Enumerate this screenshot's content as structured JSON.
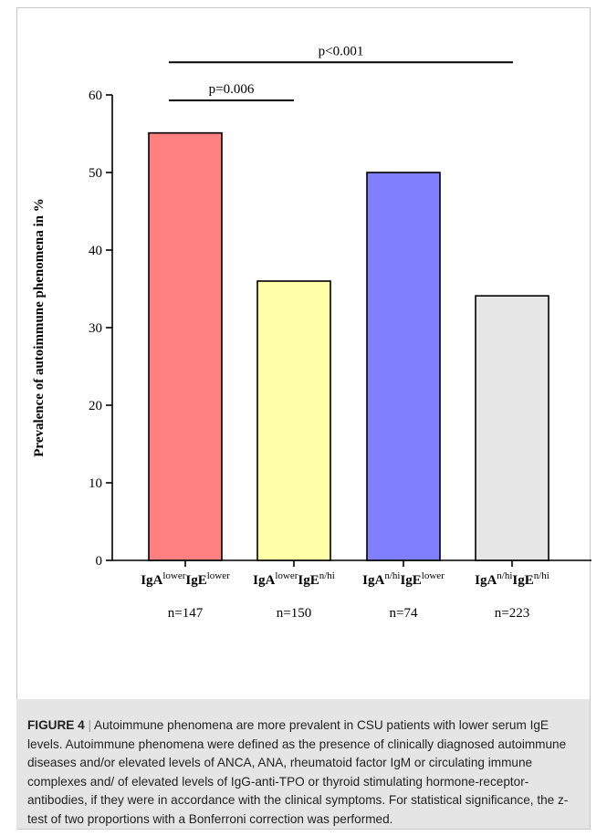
{
  "chart_data": {
    "type": "bar",
    "categories": [
      {
        "base1": "IgA",
        "sup1": "lower",
        "base2": "IgE",
        "sup2": "lower"
      },
      {
        "base1": "IgA",
        "sup1": "lower",
        "base2": "IgE",
        "sup2": "n/hi"
      },
      {
        "base1": "IgA",
        "sup1": "n/hi",
        "base2": "IgE",
        "sup2": "lower"
      },
      {
        "base1": "IgA",
        "sup1": "n/hi",
        "base2": "IgE",
        "sup2": "n/hi"
      }
    ],
    "values": [
      55.1,
      36.0,
      50.0,
      34.1
    ],
    "n_labels": [
      "n=147",
      "n=150",
      "n=74",
      "n=223"
    ],
    "bar_colors": [
      "#ff8080",
      "#ffffa8",
      "#8080ff",
      "#e6e6e6"
    ],
    "ylabel": "Prevalence of autoimmune phenomena in %",
    "ylim": [
      0,
      60
    ],
    "yticks": [
      0,
      10,
      20,
      30,
      40,
      50,
      60
    ],
    "significance": [
      {
        "label": "p=0.006",
        "from": 0,
        "to": 1,
        "level": 59.3
      },
      {
        "label": "p<0.001",
        "from": 0,
        "to": 3,
        "level": 64.2
      }
    ],
    "grid": false,
    "legend": "none"
  },
  "caption": {
    "label": "FIGURE 4",
    "separator": "|",
    "text": "Autoimmune phenomena are more prevalent in CSU patients with lower serum IgE levels. Autoimmune phenomena were defined as the presence of clinically diagnosed autoimmune diseases and/or elevated levels of ANCA, ANA, rheumatoid factor IgM or circulating immune complexes and/ of elevated levels of IgG-anti-TPO or thyroid stimulating hormone-receptor-antibodies, if they were in accordance with the clinical symptoms. For statistical significance, the z-test of two proportions with a Bonferroni correction was performed."
  }
}
